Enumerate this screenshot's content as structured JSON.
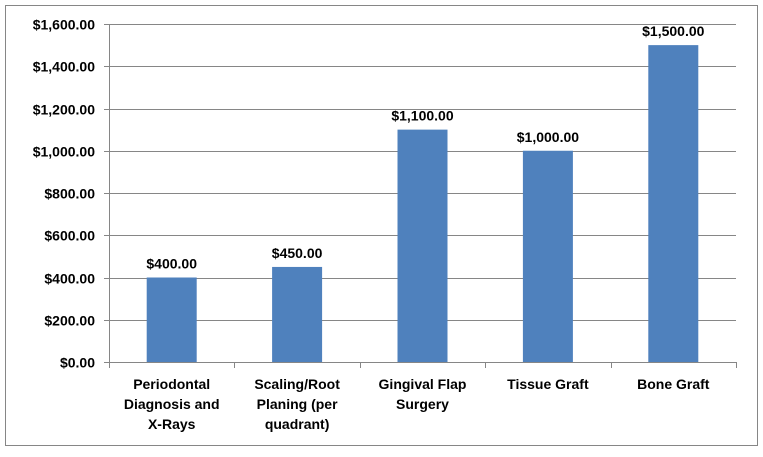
{
  "chart_data": {
    "type": "bar",
    "categories": [
      [
        "Periodontal",
        "Diagnosis and",
        "X-Rays"
      ],
      [
        "Scaling/Root",
        "Planing (per",
        "quadrant)"
      ],
      [
        "Gingival Flap",
        "Surgery"
      ],
      [
        "Tissue Graft"
      ],
      [
        "Bone Graft"
      ]
    ],
    "values": [
      400,
      450,
      1100,
      1000,
      1500
    ],
    "data_labels": [
      "$400.00",
      "$450.00",
      "$1,100.00",
      "$1,000.00",
      "$1,500.00"
    ],
    "yticks": [
      {
        "value": 0,
        "label": "$0.00"
      },
      {
        "value": 200,
        "label": "$200.00"
      },
      {
        "value": 400,
        "label": "$400.00"
      },
      {
        "value": 600,
        "label": "$600.00"
      },
      {
        "value": 800,
        "label": "$800.00"
      },
      {
        "value": 1000,
        "label": "$1,000.00"
      },
      {
        "value": 1200,
        "label": "$1,200.00"
      },
      {
        "value": 1400,
        "label": "$1,400.00"
      },
      {
        "value": 1600,
        "label": "$1,600.00"
      }
    ],
    "ylim": [
      0,
      1600
    ],
    "title": "",
    "xlabel": "",
    "ylabel": "",
    "grid": true,
    "legend": "none",
    "colors": {
      "bar": "#4F81BD",
      "grid": "#868686",
      "border": "#868686",
      "text": "#000000"
    }
  }
}
